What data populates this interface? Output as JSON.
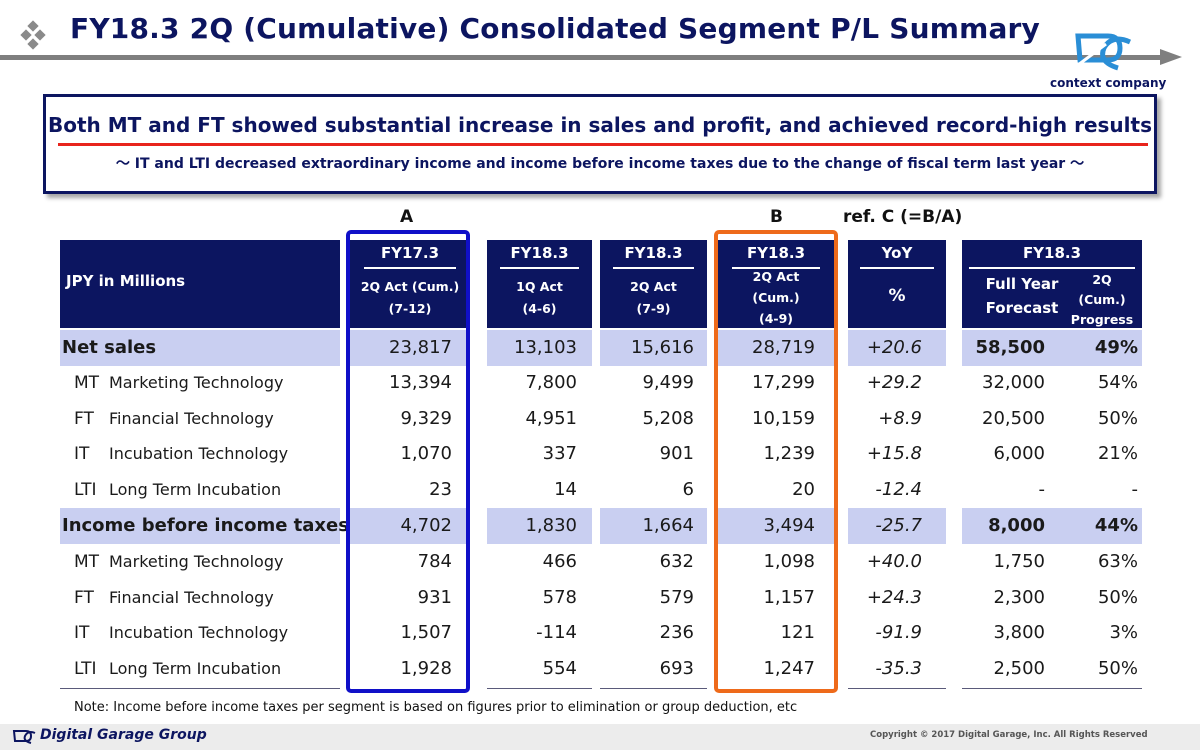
{
  "header": {
    "title": "FY18.3 2Q (Cumulative) Consolidated Segment P/L Summary",
    "brand_tagline": "context company"
  },
  "summary": {
    "headline": "Both MT and FT showed substantial increase in sales and profit, and achieved record-high results",
    "subline": "～ IT and LTI decreased extraordinary income and income before income taxes due to the change of fiscal term last year ～"
  },
  "column_letters": {
    "a": "A",
    "b": "B",
    "c": "ref. C (=B/A)"
  },
  "table_header": {
    "label": "JPY in Millions",
    "fy17": {
      "title": "FY17.3",
      "line1": "2Q Act (Cum.)",
      "line2": "(7-12)"
    },
    "q1": {
      "title": "FY18.3",
      "line1": "1Q Act",
      "line2": "(4-6)"
    },
    "q2": {
      "title": "FY18.3",
      "line1": "2Q Act",
      "line2": "(7-9)"
    },
    "cum": {
      "title": "FY18.3",
      "line1": "2Q Act",
      "line2": "(Cum.)",
      "line3": "(4-9)"
    },
    "yoy": {
      "title": "YoY",
      "unit": "%"
    },
    "fy18": {
      "title": "FY18.3",
      "forecast1": "Full Year",
      "forecast2": "Forecast",
      "progress1": "2Q",
      "progress2": "(Cum.)",
      "progress3": "Progress"
    }
  },
  "rows": [
    {
      "name": "Net sales",
      "a": "23,817",
      "q1": "13,103",
      "q2": "15,616",
      "b": "28,719",
      "yoy": "+20.6",
      "fy": "58,500",
      "progress": "49%"
    },
    {
      "code": "MT",
      "name": "Marketing Technology",
      "a": "13,394",
      "q1": "7,800",
      "q2": "9,499",
      "b": "17,299",
      "yoy": "+29.2",
      "fy": "32,000",
      "progress": "54%"
    },
    {
      "code": "FT",
      "name": "Financial Technology",
      "a": "9,329",
      "q1": "4,951",
      "q2": "5,208",
      "b": "10,159",
      "yoy": "+8.9",
      "fy": "20,500",
      "progress": "50%"
    },
    {
      "code": "IT",
      "name": "Incubation Technology",
      "a": "1,070",
      "q1": "337",
      "q2": "901",
      "b": "1,239",
      "yoy": "+15.8",
      "fy": "6,000",
      "progress": "21%"
    },
    {
      "code": "LTI",
      "name": "Long Term Incubation",
      "a": "23",
      "q1": "14",
      "q2": "6",
      "b": "20",
      "yoy": "-12.4",
      "fy": "-",
      "progress": "-"
    },
    {
      "name": "Income before income taxes",
      "a": "4,702",
      "q1": "1,830",
      "q2": "1,664",
      "b": "3,494",
      "yoy": "-25.7",
      "fy": "8,000",
      "progress": "44%"
    },
    {
      "code": "MT",
      "name": "Marketing Technology",
      "a": "784",
      "q1": "466",
      "q2": "632",
      "b": "1,098",
      "yoy": "+40.0",
      "fy": "1,750",
      "progress": "63%"
    },
    {
      "code": "FT",
      "name": "Financial Technology",
      "a": "931",
      "q1": "578",
      "q2": "579",
      "b": "1,157",
      "yoy": "+24.3",
      "fy": "2,300",
      "progress": "50%"
    },
    {
      "code": "IT",
      "name": "Incubation Technology",
      "a": "1,507",
      "q1": "-114",
      "q2": "236",
      "b": "121",
      "yoy": "-91.9",
      "fy": "3,800",
      "progress": "3%"
    },
    {
      "code": "LTI",
      "name": "Long Term Incubation",
      "a": "1,928",
      "q1": "554",
      "q2": "693",
      "b": "1,247",
      "yoy": "-35.3",
      "fy": "2,500",
      "progress": "50%"
    }
  ],
  "note": "Note: Income before income taxes per segment is based on figures prior to elimination or group deduction, etc",
  "footer": {
    "company": "Digital Garage Group",
    "copyright": "Copyright © 2017 Digital Garage, Inc. All Rights Reserved"
  },
  "colors": {
    "navy": "#0c1560",
    "band": "#c9cff1",
    "frame_a": "#1010c8",
    "frame_b": "#ee6a1a",
    "accent_red": "#e8241c"
  }
}
